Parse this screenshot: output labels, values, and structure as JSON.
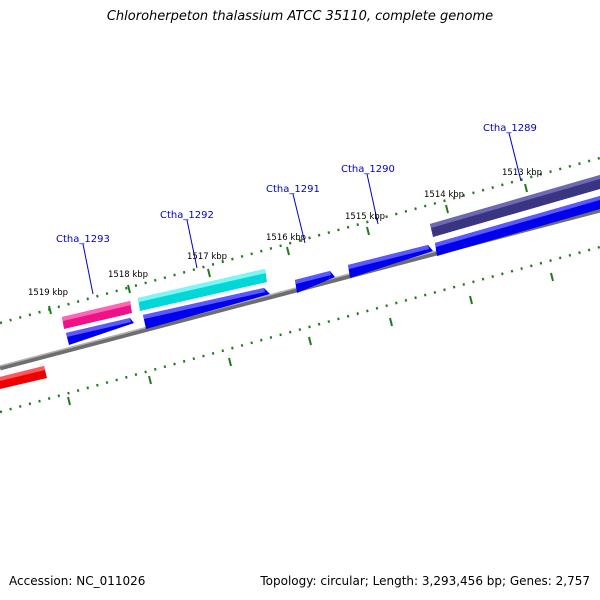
{
  "title": "Chloroherpeton thalassium ATCC 35110, complete genome",
  "footer": {
    "accession": "Accession: NC_011026",
    "topology": "Topology: circular; Length: 3,293,456 bp; Genes: 2,757"
  },
  "kbp_labels": [
    "1519 kbp",
    "1518 kbp",
    "1517 kbp",
    "1516 kbp",
    "1515 kbp",
    "1514 kbp",
    "1513 kbp"
  ],
  "gene_labels": [
    "Ctha_1293",
    "Ctha_1292",
    "Ctha_1291",
    "Ctha_1290",
    "Ctha_1289"
  ],
  "colors": {
    "label": "#0000cc",
    "backbone": "#7a7a7a",
    "ticks": "#1f7a1f",
    "gene_blue": "#0000ee",
    "gene_magenta": "#ee1188",
    "gene_cyan": "#00e5e5",
    "gene_purple": "#3a3580",
    "gene_red": "#ee0000"
  }
}
